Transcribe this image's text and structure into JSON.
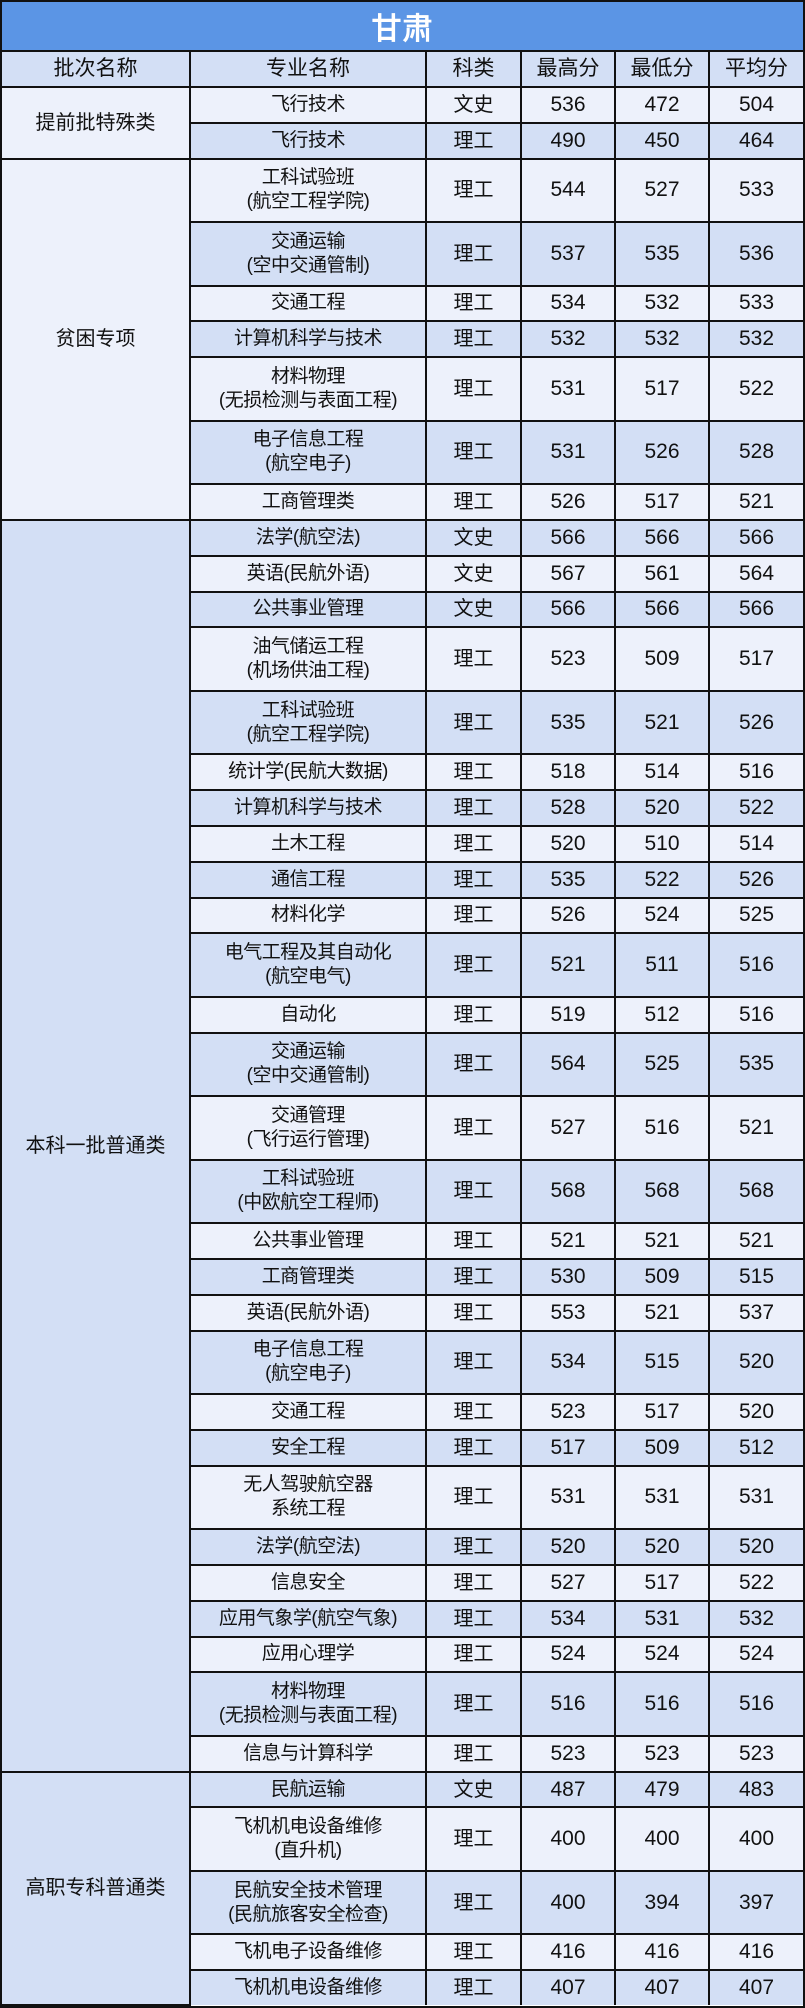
{
  "title": "甘肃",
  "headers": [
    "批次名称",
    "专业名称",
    "科类",
    "最高分",
    "最低分",
    "平均分"
  ],
  "colors": {
    "title_bg": "#5b95e5",
    "row_light": "#edf1fb",
    "row_dark": "#d3dff5",
    "border": "#111111"
  },
  "groups": [
    {
      "batch": "提前批特殊类",
      "shade": "light",
      "rows": [
        {
          "major": [
            "飞行技术"
          ],
          "type": "文史",
          "max": "536",
          "min": "472",
          "avg": "504"
        },
        {
          "major": [
            "飞行技术"
          ],
          "type": "理工",
          "max": "490",
          "min": "450",
          "avg": "464"
        }
      ]
    },
    {
      "batch": "贫困专项",
      "shade": "light",
      "rows": [
        {
          "major": [
            "工科试验班",
            "(航空工程学院)"
          ],
          "type": "理工",
          "max": "544",
          "min": "527",
          "avg": "533"
        },
        {
          "major": [
            "交通运输",
            "(空中交通管制)"
          ],
          "type": "理工",
          "max": "537",
          "min": "535",
          "avg": "536"
        },
        {
          "major": [
            "交通工程"
          ],
          "type": "理工",
          "max": "534",
          "min": "532",
          "avg": "533"
        },
        {
          "major": [
            "计算机科学与技术"
          ],
          "type": "理工",
          "max": "532",
          "min": "532",
          "avg": "532"
        },
        {
          "major": [
            "材料物理",
            "(无损检测与表面工程)"
          ],
          "type": "理工",
          "max": "531",
          "min": "517",
          "avg": "522"
        },
        {
          "major": [
            "电子信息工程",
            "(航空电子)"
          ],
          "type": "理工",
          "max": "531",
          "min": "526",
          "avg": "528"
        },
        {
          "major": [
            "工商管理类"
          ],
          "type": "理工",
          "max": "526",
          "min": "517",
          "avg": "521"
        }
      ]
    },
    {
      "batch": "本科一批普通类",
      "shade": "dark",
      "rows": [
        {
          "major": [
            "法学(航空法)"
          ],
          "type": "文史",
          "max": "566",
          "min": "566",
          "avg": "566"
        },
        {
          "major": [
            "英语(民航外语)"
          ],
          "type": "文史",
          "max": "567",
          "min": "561",
          "avg": "564"
        },
        {
          "major": [
            "公共事业管理"
          ],
          "type": "文史",
          "max": "566",
          "min": "566",
          "avg": "566"
        },
        {
          "major": [
            "油气储运工程",
            "(机场供油工程)"
          ],
          "type": "理工",
          "max": "523",
          "min": "509",
          "avg": "517"
        },
        {
          "major": [
            "工科试验班",
            "(航空工程学院)"
          ],
          "type": "理工",
          "max": "535",
          "min": "521",
          "avg": "526"
        },
        {
          "major": [
            "统计学(民航大数据)"
          ],
          "type": "理工",
          "max": "518",
          "min": "514",
          "avg": "516"
        },
        {
          "major": [
            "计算机科学与技术"
          ],
          "type": "理工",
          "max": "528",
          "min": "520",
          "avg": "522"
        },
        {
          "major": [
            "土木工程"
          ],
          "type": "理工",
          "max": "520",
          "min": "510",
          "avg": "514"
        },
        {
          "major": [
            "通信工程"
          ],
          "type": "理工",
          "max": "535",
          "min": "522",
          "avg": "526"
        },
        {
          "major": [
            "材料化学"
          ],
          "type": "理工",
          "max": "526",
          "min": "524",
          "avg": "525"
        },
        {
          "major": [
            "电气工程及其自动化",
            "(航空电气)"
          ],
          "type": "理工",
          "max": "521",
          "min": "511",
          "avg": "516"
        },
        {
          "major": [
            "自动化"
          ],
          "type": "理工",
          "max": "519",
          "min": "512",
          "avg": "516"
        },
        {
          "major": [
            "交通运输",
            "(空中交通管制)"
          ],
          "type": "理工",
          "max": "564",
          "min": "525",
          "avg": "535"
        },
        {
          "major": [
            "交通管理",
            "(飞行运行管理)"
          ],
          "type": "理工",
          "max": "527",
          "min": "516",
          "avg": "521"
        },
        {
          "major": [
            "工科试验班",
            "(中欧航空工程师)"
          ],
          "type": "理工",
          "max": "568",
          "min": "568",
          "avg": "568"
        },
        {
          "major": [
            "公共事业管理"
          ],
          "type": "理工",
          "max": "521",
          "min": "521",
          "avg": "521"
        },
        {
          "major": [
            "工商管理类"
          ],
          "type": "理工",
          "max": "530",
          "min": "509",
          "avg": "515"
        },
        {
          "major": [
            "英语(民航外语)"
          ],
          "type": "理工",
          "max": "553",
          "min": "521",
          "avg": "537"
        },
        {
          "major": [
            "电子信息工程",
            "(航空电子)"
          ],
          "type": "理工",
          "max": "534",
          "min": "515",
          "avg": "520"
        },
        {
          "major": [
            "交通工程"
          ],
          "type": "理工",
          "max": "523",
          "min": "517",
          "avg": "520"
        },
        {
          "major": [
            "安全工程"
          ],
          "type": "理工",
          "max": "517",
          "min": "509",
          "avg": "512"
        },
        {
          "major": [
            "无人驾驶航空器",
            "系统工程"
          ],
          "type": "理工",
          "max": "531",
          "min": "531",
          "avg": "531"
        },
        {
          "major": [
            "法学(航空法)"
          ],
          "type": "理工",
          "max": "520",
          "min": "520",
          "avg": "520"
        },
        {
          "major": [
            "信息安全"
          ],
          "type": "理工",
          "max": "527",
          "min": "517",
          "avg": "522"
        },
        {
          "major": [
            "应用气象学(航空气象)"
          ],
          "type": "理工",
          "max": "534",
          "min": "531",
          "avg": "532"
        },
        {
          "major": [
            "应用心理学"
          ],
          "type": "理工",
          "max": "524",
          "min": "524",
          "avg": "524"
        },
        {
          "major": [
            "材料物理",
            "(无损检测与表面工程)"
          ],
          "type": "理工",
          "max": "516",
          "min": "516",
          "avg": "516"
        },
        {
          "major": [
            "信息与计算科学"
          ],
          "type": "理工",
          "max": "523",
          "min": "523",
          "avg": "523"
        }
      ]
    },
    {
      "batch": "高职专科普通类",
      "shade": "dark",
      "rows": [
        {
          "major": [
            "民航运输"
          ],
          "type": "文史",
          "max": "487",
          "min": "479",
          "avg": "483"
        },
        {
          "major": [
            "飞机机电设备维修",
            "(直升机)"
          ],
          "type": "理工",
          "max": "400",
          "min": "400",
          "avg": "400"
        },
        {
          "major": [
            "民航安全技术管理",
            "(民航旅客安全检查)"
          ],
          "type": "理工",
          "max": "400",
          "min": "394",
          "avg": "397"
        },
        {
          "major": [
            "飞机电子设备维修"
          ],
          "type": "理工",
          "max": "416",
          "min": "416",
          "avg": "416"
        },
        {
          "major": [
            "飞机机电设备维修"
          ],
          "type": "理工",
          "max": "407",
          "min": "407",
          "avg": "407"
        }
      ]
    }
  ]
}
